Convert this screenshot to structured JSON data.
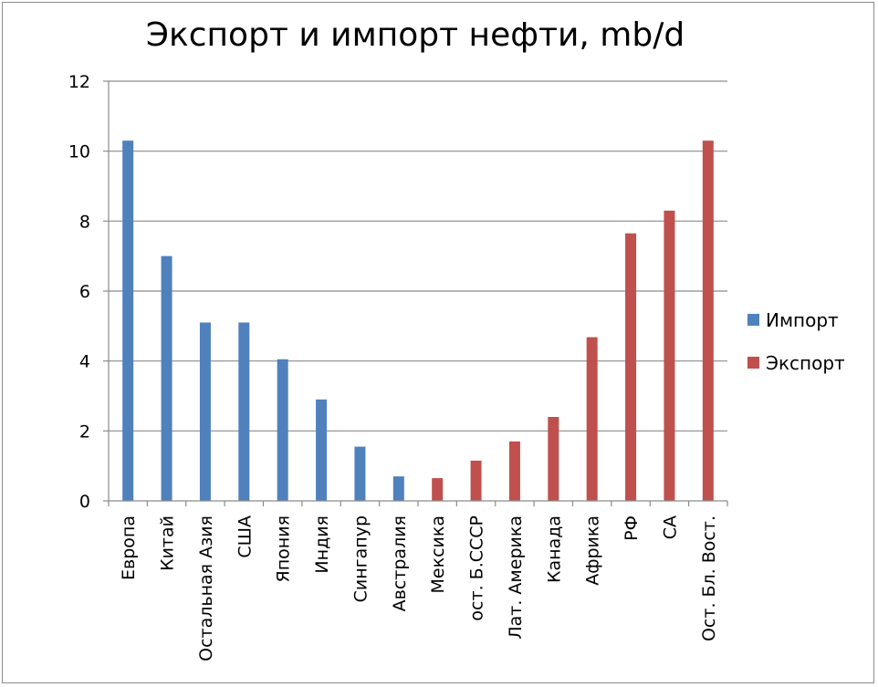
{
  "chart_data": {
    "type": "bar",
    "title": "Экспорт и импорт нефти, mb/d",
    "xlabel": "",
    "ylabel": "",
    "ylim": [
      0,
      12
    ],
    "yticks": [
      0,
      2,
      4,
      6,
      8,
      10,
      12
    ],
    "grid": true,
    "legend_position": "right",
    "categories": [
      "Европа",
      "Китай",
      "Остальная Азия",
      "США",
      "Япония",
      "Индия",
      "Сингапур",
      "Австралия",
      "Мексика",
      "ост. Б.СССР",
      "Лат. Америка",
      "Канада",
      "Африка",
      "РФ",
      "СА",
      "Ост. Бл. Вост."
    ],
    "series": [
      {
        "name": "Импорт",
        "color": "#4f81bd",
        "values": [
          10.3,
          7.0,
          5.1,
          5.1,
          4.05,
          2.9,
          1.55,
          0.7,
          null,
          null,
          null,
          null,
          null,
          null,
          null,
          null
        ]
      },
      {
        "name": "Экспорт",
        "color": "#c0504d",
        "values": [
          null,
          null,
          null,
          null,
          null,
          null,
          null,
          null,
          0.65,
          1.15,
          1.7,
          2.4,
          4.68,
          7.65,
          8.3,
          10.3
        ]
      }
    ]
  }
}
